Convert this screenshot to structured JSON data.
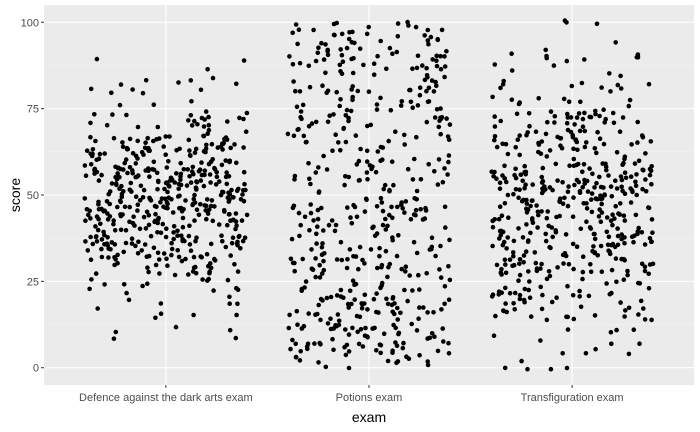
{
  "chart_data": {
    "type": "scatter",
    "jitter": true,
    "xlabel": "exam",
    "ylabel": "score",
    "ylim": [
      -5,
      105
    ],
    "yticks": [
      0,
      25,
      50,
      75,
      100
    ],
    "categories": [
      "Defence against the dark arts exam",
      "Potions exam",
      "Transfiguration exam"
    ],
    "grid": true,
    "legend": "none",
    "colors": {
      "panel": "#ebebeb",
      "grid_major": "#ffffff",
      "grid_minor": "#f5f5f5",
      "point": "#000000",
      "tick": "#333333"
    },
    "series": [
      {
        "category": "Defence against the dark arts exam",
        "n": 500,
        "min": 0,
        "max": 89,
        "center": 48,
        "spread": 15,
        "distribution": "normal"
      },
      {
        "category": "Potions exam",
        "n": 500,
        "min": 0,
        "max": 100,
        "center": 50,
        "spread": 29,
        "distribution": "uniform"
      },
      {
        "category": "Transfiguration exam",
        "n": 500,
        "min": 0,
        "max": 100,
        "center": 48,
        "spread": 20,
        "distribution": "normal"
      }
    ]
  }
}
